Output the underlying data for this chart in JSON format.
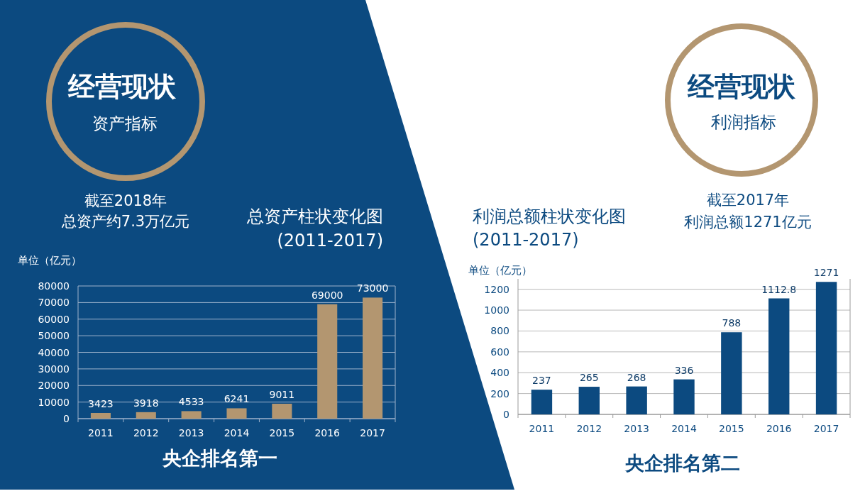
{
  "chart_data": [
    {
      "type": "bar",
      "title": "总资产柱状变化图",
      "subtitle": "(2011-2017)",
      "ylabel": "单位（亿元）",
      "categories": [
        "2011",
        "2012",
        "2013",
        "2014",
        "2015",
        "2016",
        "2017"
      ],
      "values": [
        3423,
        3918,
        4533,
        6241,
        9011,
        69000,
        73000
      ],
      "color": "#b39670",
      "ylim": [
        0,
        80000
      ],
      "yticks": [
        0,
        10000,
        20000,
        30000,
        40000,
        50000,
        60000,
        70000,
        80000
      ],
      "grid": "y",
      "data_labels": true,
      "annotations": [
        "经营现状",
        "资产指标",
        "截至2018年",
        "总资产约7.3万亿元",
        "央企排名第一"
      ]
    },
    {
      "type": "bar",
      "title": "利润总额柱状变化图",
      "subtitle": "(2011-2017)",
      "ylabel": "单位（亿元）",
      "categories": [
        "2011",
        "2012",
        "2013",
        "2014",
        "2015",
        "2016",
        "2017"
      ],
      "values": [
        237,
        265,
        268,
        336,
        788,
        1112.8,
        1271
      ],
      "color": "#0c4a80",
      "ylim": [
        0,
        1300
      ],
      "yticks": [
        0,
        200,
        400,
        600,
        800,
        1000,
        1200
      ],
      "grid": "y",
      "data_labels": true,
      "annotations": [
        "经营现状",
        "利润指标",
        "截至2017年",
        "利润总额1271亿元",
        "央企排名第二"
      ]
    }
  ]
}
